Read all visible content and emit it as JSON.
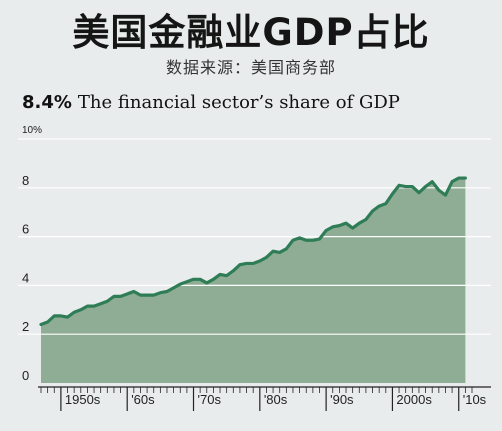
{
  "title": "美国金融业GDP占比",
  "subtitle": "数据来源：美国商务部",
  "headline": {
    "value": "8.4%",
    "text": "The financial sector’s share of GDP"
  },
  "colors": {
    "area_fill": "#8fad94",
    "line": "#2f7d57",
    "grid": "#ffffff",
    "background": "#e9ecec"
  },
  "chart_data": {
    "type": "area",
    "ylim": [
      0,
      10
    ],
    "xlim": [
      1947,
      2012
    ],
    "y_ticks": [
      {
        "value": 0,
        "label": "0"
      },
      {
        "value": 2,
        "label": "2"
      },
      {
        "value": 4,
        "label": "4"
      },
      {
        "value": 6,
        "label": "6"
      },
      {
        "value": 8,
        "label": "8"
      },
      {
        "value": 10,
        "label": "10%"
      }
    ],
    "x_tick_labels": [
      {
        "label": "1950s",
        "year": 1950
      },
      {
        "label": "'60s",
        "year": 1960
      },
      {
        "label": "'70s",
        "year": 1970
      },
      {
        "label": "'80s",
        "year": 1980
      },
      {
        "label": "'90s",
        "year": 1990
      },
      {
        "label": "2000s",
        "year": 2000
      },
      {
        "label": "'10s",
        "year": 2010
      }
    ],
    "grid": true,
    "x": [
      1947,
      1948,
      1949,
      1950,
      1951,
      1952,
      1953,
      1954,
      1955,
      1956,
      1957,
      1958,
      1959,
      1960,
      1961,
      1962,
      1963,
      1964,
      1965,
      1966,
      1967,
      1968,
      1969,
      1970,
      1971,
      1972,
      1973,
      1974,
      1975,
      1976,
      1977,
      1978,
      1979,
      1980,
      1981,
      1982,
      1983,
      1984,
      1985,
      1986,
      1987,
      1988,
      1989,
      1990,
      1991,
      1992,
      1993,
      1994,
      1995,
      1996,
      1997,
      1998,
      1999,
      2000,
      2001,
      2002,
      2003,
      2004,
      2005,
      2006,
      2007,
      2008,
      2009,
      2010,
      2011
    ],
    "y": [
      2.4,
      2.5,
      2.75,
      2.75,
      2.7,
      2.9,
      3.0,
      3.15,
      3.15,
      3.25,
      3.35,
      3.55,
      3.55,
      3.65,
      3.75,
      3.6,
      3.6,
      3.6,
      3.7,
      3.75,
      3.9,
      4.05,
      4.15,
      4.25,
      4.25,
      4.1,
      4.25,
      4.45,
      4.4,
      4.6,
      4.85,
      4.9,
      4.9,
      5.0,
      5.15,
      5.4,
      5.35,
      5.5,
      5.85,
      5.95,
      5.85,
      5.85,
      5.9,
      6.25,
      6.4,
      6.45,
      6.55,
      6.35,
      6.55,
      6.7,
      7.05,
      7.25,
      7.35,
      7.75,
      8.1,
      8.05,
      8.05,
      7.8,
      8.05,
      8.25,
      7.9,
      7.7,
      8.25,
      8.4,
      8.4
    ]
  }
}
